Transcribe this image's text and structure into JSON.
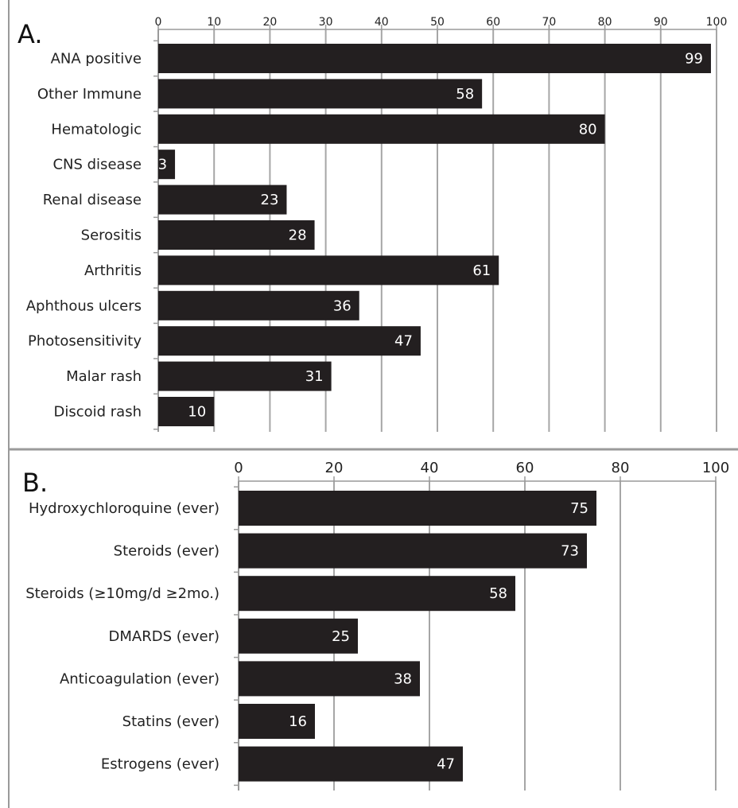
{
  "chart_data": [
    {
      "type": "bar",
      "orientation": "horizontal",
      "panel_label": "A.",
      "categories": [
        "ANA positive",
        "Other Immune",
        "Hematologic",
        "CNS disease",
        "Renal disease",
        "Serositis",
        "Arthritis",
        "Aphthous ulcers",
        "Photosensitivity",
        "Malar rash",
        "Discoid rash"
      ],
      "values": [
        99,
        58,
        80,
        3,
        23,
        28,
        61,
        36,
        47,
        31,
        10
      ],
      "data_labels": [
        "99",
        "58",
        "80",
        "3",
        "23",
        "28",
        "61",
        "36",
        "47",
        "31",
        "10"
      ],
      "xlim": [
        0,
        100
      ],
      "x_ticks": [
        0,
        10,
        20,
        30,
        40,
        50,
        60,
        70,
        80,
        90,
        100
      ],
      "x_tick_labels": [
        "0",
        "10",
        "20",
        "30",
        "40",
        "50",
        "60",
        "70",
        "80",
        "90",
        "100"
      ],
      "axis_position": "top",
      "grid": true,
      "bar_color": "#231f20",
      "grid_color": "#a6a6a6"
    },
    {
      "type": "bar",
      "orientation": "horizontal",
      "panel_label": "B.",
      "categories": [
        "Hydroxychloroquine (ever)",
        "Steroids (ever)",
        "Steroids (≥10mg/d ≥2mo.)",
        "DMARDS (ever)",
        "Anticoagulation (ever)",
        "Statins (ever)",
        "Estrogens (ever)"
      ],
      "values": [
        75,
        73,
        58,
        25,
        38,
        16,
        47
      ],
      "data_labels": [
        "75",
        "73",
        "58",
        "25",
        "38",
        "16",
        "47"
      ],
      "xlim": [
        0,
        100
      ],
      "x_ticks": [
        0,
        20,
        40,
        60,
        80,
        100
      ],
      "x_tick_labels": [
        "0",
        "20",
        "40",
        "60",
        "80",
        "100"
      ],
      "axis_position": "top",
      "grid": true,
      "bar_color": "#231f20",
      "grid_color": "#a6a6a6"
    }
  ]
}
